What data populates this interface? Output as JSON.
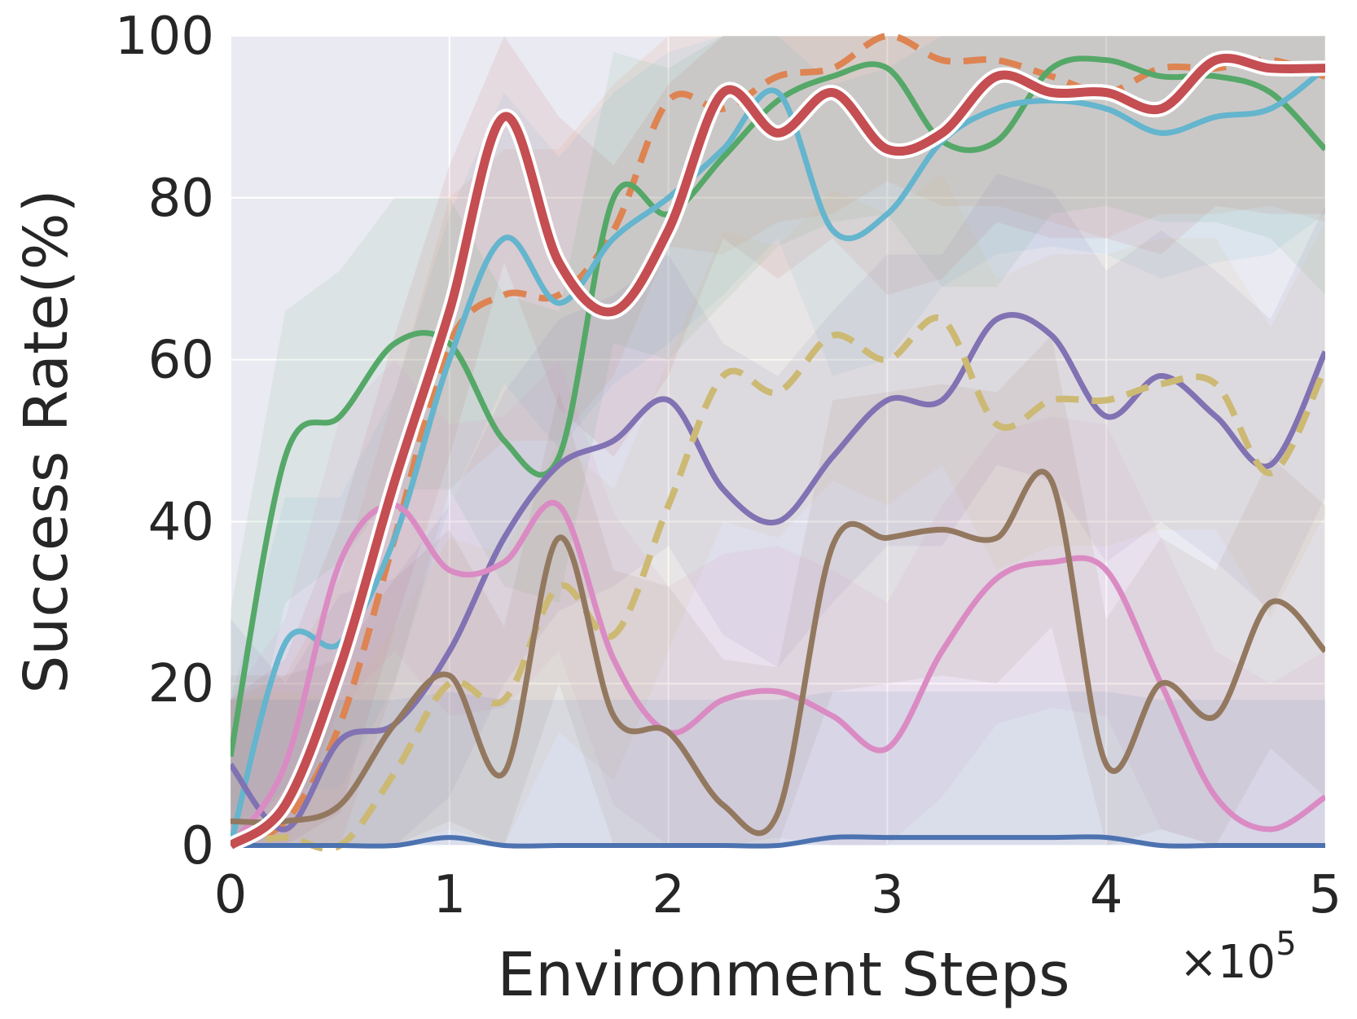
{
  "chart_data": {
    "type": "line",
    "title": "",
    "xlabel": "Environment Steps",
    "ylabel": "Success Rate(%)",
    "x_multiplier_label": "×10",
    "x_multiplier_exp": "5",
    "xlim": [
      0,
      5
    ],
    "ylim": [
      0,
      100
    ],
    "xticks": [
      "0",
      "1",
      "2",
      "3",
      "4",
      "5"
    ],
    "yticks": [
      "0",
      "20",
      "40",
      "60",
      "80",
      "100"
    ],
    "grid": true,
    "legend": "none",
    "background": "#eaeaf2",
    "x": [
      0,
      0.25,
      0.5,
      0.75,
      1.0,
      1.25,
      1.5,
      1.75,
      2.0,
      2.25,
      2.5,
      2.75,
      3.0,
      3.25,
      3.5,
      3.75,
      4.0,
      4.25,
      4.5,
      4.75,
      5.0
    ],
    "series": [
      {
        "color": "#c44e52",
        "dash": "",
        "width": 11,
        "outline": true,
        "values": [
          0,
          5,
          22,
          45,
          66,
          90,
          72,
          66,
          76,
          93,
          88,
          93,
          86,
          88,
          95,
          93,
          93,
          91,
          97,
          96,
          96
        ]
      },
      {
        "color": "#dd8452",
        "dash": "28 16",
        "width": 8,
        "outline": false,
        "values": [
          0,
          3,
          15,
          38,
          62,
          68,
          68,
          76,
          92,
          91,
          95,
          96,
          100,
          97,
          97,
          95,
          93,
          96,
          96,
          97,
          95
        ]
      },
      {
        "color": "#55a868",
        "dash": "",
        "width": 7,
        "outline": false,
        "values": [
          11,
          48,
          53,
          62,
          62,
          50,
          48,
          80,
          78,
          85,
          92,
          95,
          96,
          87,
          87,
          96,
          97,
          95,
          95,
          93,
          86
        ]
      },
      {
        "color": "#64b5cd",
        "dash": "",
        "width": 7,
        "outline": false,
        "values": [
          0,
          25,
          25,
          38,
          60,
          75,
          67,
          75,
          80,
          86,
          93,
          76,
          78,
          87,
          91,
          92,
          91,
          88,
          90,
          91,
          96
        ]
      },
      {
        "color": "#8172b3",
        "dash": "",
        "width": 7,
        "outline": false,
        "values": [
          10,
          2,
          13,
          15,
          24,
          38,
          47,
          50,
          55,
          44,
          40,
          48,
          55,
          55,
          65,
          63,
          53,
          58,
          53,
          47,
          61
        ]
      },
      {
        "color": "#da8bc3",
        "dash": "",
        "width": 7,
        "outline": false,
        "values": [
          0,
          10,
          35,
          42,
          34,
          35,
          42,
          23,
          14,
          18,
          19,
          16,
          12,
          24,
          33,
          35,
          34,
          20,
          6,
          2,
          6
        ]
      },
      {
        "color": "#ccb974",
        "dash": "28 16",
        "width": 8,
        "outline": false,
        "values": [
          0,
          1,
          0,
          9,
          20,
          18,
          32,
          26,
          42,
          58,
          56,
          63,
          60,
          65,
          52,
          55,
          55,
          57,
          57,
          46,
          59
        ]
      },
      {
        "color": "#937860",
        "dash": "",
        "width": 7,
        "outline": false,
        "values": [
          3,
          3,
          5,
          15,
          21,
          9,
          38,
          16,
          14,
          5,
          4,
          37,
          38,
          39,
          38,
          45,
          10,
          20,
          16,
          30,
          24
        ]
      },
      {
        "color": "#4c72b0",
        "dash": "",
        "width": 6,
        "outline": false,
        "values": [
          0,
          0,
          0,
          0,
          1,
          0,
          0,
          0,
          0,
          0,
          0,
          1,
          1,
          1,
          1,
          1,
          1,
          0,
          0,
          0,
          0
        ]
      }
    ]
  }
}
